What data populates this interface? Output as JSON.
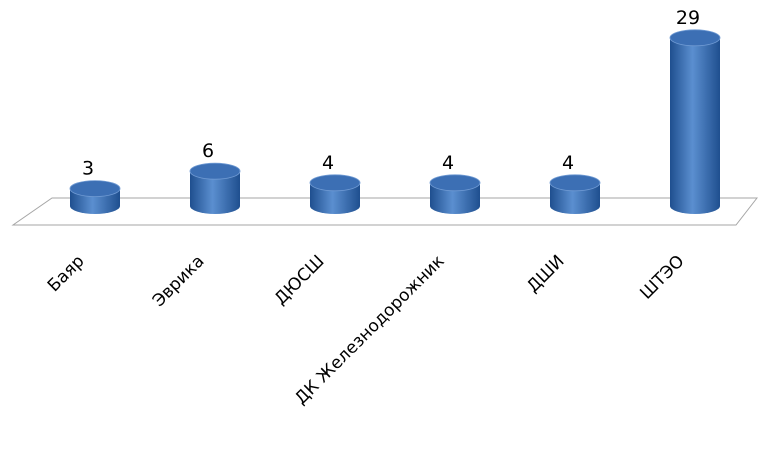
{
  "chart_data": {
    "type": "bar",
    "categories": [
      "Баяр",
      "Эврика",
      "ДЮСШ",
      "ДК Железнодорожник",
      "ДШИ",
      "ШТЭО"
    ],
    "values": [
      3,
      6,
      4,
      4,
      4,
      29
    ],
    "title": "",
    "xlabel": "",
    "ylabel": "",
    "ylim": [
      0,
      30
    ],
    "grid": false,
    "legend": "none",
    "style": "3d-cylinder",
    "colors": {
      "bar": "#4a7ec0",
      "bar_dark": "#1f4f8f",
      "bar_top": "#3c6fb4",
      "floor_line": "#a6a6a6"
    }
  }
}
